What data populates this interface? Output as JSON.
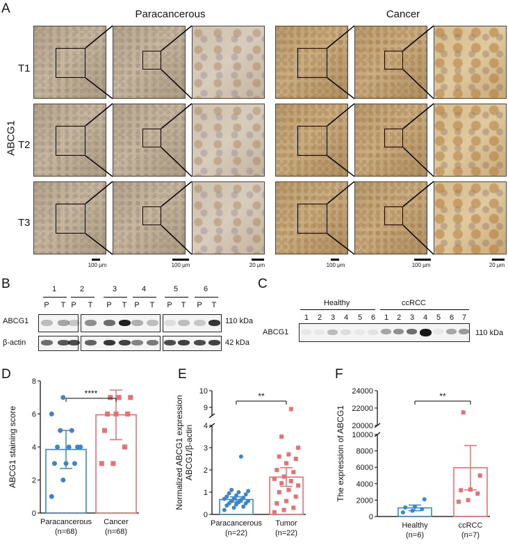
{
  "panel_a": {
    "letter": "A",
    "group_left": "Paracancerous",
    "group_right": "Cancer",
    "marker": "ABCG1",
    "rows": [
      "T1",
      "T2",
      "T3"
    ],
    "scale_labels": [
      "100 μm",
      "100 μm",
      "20 μm",
      "100 μm",
      "100 μm",
      "20 μm"
    ]
  },
  "panel_b": {
    "letter": "B",
    "pair_numbers": [
      "1",
      "2",
      "3",
      "4",
      "5",
      "6"
    ],
    "lane_labels": [
      "P",
      "T",
      "P",
      "T",
      "P",
      "T",
      "P",
      "T",
      "P",
      "T",
      "P",
      "T"
    ],
    "rows": [
      "ABCG1",
      "β-actin"
    ],
    "sizes": [
      "110 kDa",
      "42 kDa"
    ]
  },
  "panel_c": {
    "letter": "C",
    "group_healthy": "Healthy",
    "group_ccrcc": "ccRCC",
    "healthy_lanes": [
      "1",
      "2",
      "3",
      "4",
      "5",
      "6"
    ],
    "ccrcc_lanes": [
      "1",
      "2",
      "3",
      "4",
      "5",
      "6",
      "7"
    ],
    "row": "ABCG1",
    "size": "110 kDa"
  },
  "panel_d": {
    "letter": "D"
  },
  "panel_e": {
    "letter": "E"
  },
  "panel_f": {
    "letter": "F"
  },
  "colors": {
    "blue": "#3d85c6",
    "red": "#ea6f73"
  },
  "chart_data": [
    {
      "type": "bar",
      "panel": "D",
      "ylabel": "ABCG1 staining score",
      "ylim": [
        0,
        8
      ],
      "yticks": [
        "0",
        "2",
        "4",
        "6",
        "8"
      ],
      "categories": [
        "Paracancerous",
        "Cancer"
      ],
      "sublabels": [
        "(n=68)",
        "(n=68)"
      ],
      "values": [
        3.85,
        5.95
      ],
      "error": [
        1.15,
        1.5
      ],
      "points": [
        [
          1,
          2,
          3,
          3,
          3,
          4,
          4,
          4,
          4,
          5,
          5,
          6,
          7
        ],
        [
          3,
          3,
          4,
          5,
          6,
          6,
          6,
          7,
          7,
          7
        ]
      ],
      "significance": "****"
    },
    {
      "type": "bar",
      "panel": "E",
      "ylabel": "Normalized ABCG1 expression",
      "ylabel2": "ABCG1/β-actin",
      "ylim": [
        0,
        10
      ],
      "axis_break": [
        4,
        8.5
      ],
      "yticks": [
        "0",
        "1",
        "2",
        "3",
        "4",
        "9",
        "10"
      ],
      "categories": [
        "Paracancerous",
        "Tumor"
      ],
      "sublabels": [
        "(n=22)",
        "(n=22)"
      ],
      "values": [
        0.67,
        1.68
      ],
      "error": [
        0.12,
        0.42
      ],
      "points": [
        [
          0.2,
          0.3,
          0.35,
          0.4,
          0.45,
          0.5,
          0.5,
          0.55,
          0.6,
          0.6,
          0.65,
          0.7,
          0.7,
          0.75,
          0.8,
          0.85,
          0.9,
          0.95,
          1.0,
          1.05,
          1.1,
          2.6
        ],
        [
          0.1,
          0.2,
          0.3,
          0.5,
          0.6,
          0.8,
          1.0,
          1.1,
          1.3,
          1.4,
          1.5,
          1.6,
          1.7,
          1.9,
          2.0,
          2.3,
          2.5,
          2.6,
          2.7,
          3.0,
          3.5,
          8.9
        ]
      ],
      "significance": "**"
    },
    {
      "type": "bar",
      "panel": "F",
      "ylabel": "The expression of ABCG1",
      "ylim": [
        0,
        24000
      ],
      "axis_break": [
        10000,
        20000
      ],
      "yticks": [
        "0",
        "2000",
        "4000",
        "6000",
        "8000",
        "10000",
        "20000",
        "22000",
        "24000"
      ],
      "categories": [
        "Healthy",
        "ccRCC"
      ],
      "sublabels": [
        "(n=6)",
        "(n=7)"
      ],
      "values": [
        1050,
        5950
      ],
      "error": [
        350,
        2700
      ],
      "points": [
        [
          500,
          700,
          900,
          1100,
          1200,
          2100
        ],
        [
          1800,
          2000,
          2800,
          3200,
          3300,
          5000,
          21500
        ]
      ],
      "significance": "**"
    }
  ]
}
